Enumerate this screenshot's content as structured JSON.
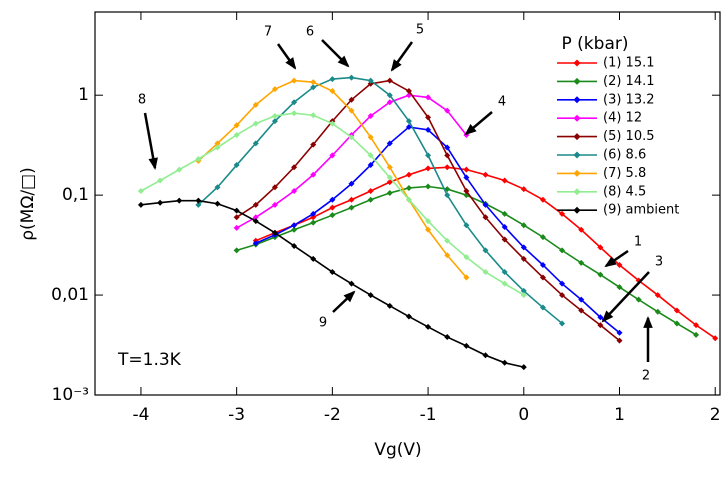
{
  "chart_data": {
    "type": "line",
    "y_label": "ρ(MΩ/□)",
    "x_label": "Vg(V)",
    "log_y": true,
    "xlim": [
      -4.48,
      2.05
    ],
    "ylim": [
      0.001,
      6.8
    ],
    "xticks": [
      -4,
      -3,
      -2,
      -1,
      0,
      1,
      2
    ],
    "yticks": [
      {
        "value": 0.001,
        "label": "10⁻³"
      },
      {
        "value": 0.01,
        "label": "0,01"
      },
      {
        "value": 0.1,
        "label": "0,1"
      },
      1
    ],
    "legend_title": "P (kbar)",
    "legend": "upper right",
    "annotation": "T=1.3K",
    "arrow_labels": [
      "1",
      "2",
      "3",
      "4",
      "5",
      "6",
      "7",
      "8",
      "9"
    ],
    "x": [
      -4.0,
      -3.8,
      -3.6,
      -3.4,
      -3.2,
      -3.0,
      -2.8,
      -2.6,
      -2.4,
      -2.2,
      -2.0,
      -1.8,
      -1.6,
      -1.4,
      -1.2,
      -1.0,
      -0.8,
      -0.6,
      -0.4,
      -0.2,
      0.0,
      0.2,
      0.4,
      0.6,
      0.8,
      1.0,
      1.2,
      1.4,
      1.6,
      1.8,
      2.0
    ],
    "series": [
      {
        "name": "(1) 15.1",
        "color": "#ff0000",
        "values": [
          null,
          null,
          null,
          null,
          null,
          null,
          0.035,
          0.042,
          0.05,
          0.06,
          0.075,
          0.09,
          0.11,
          0.135,
          0.16,
          0.185,
          0.19,
          0.18,
          0.16,
          0.14,
          0.115,
          0.09,
          0.065,
          0.045,
          0.03,
          0.02,
          0.014,
          0.01,
          0.007,
          0.005,
          0.0037
        ]
      },
      {
        "name": "(2) 14.1",
        "color": "#1a8a1a",
        "values": [
          null,
          null,
          null,
          null,
          null,
          0.028,
          0.032,
          0.038,
          0.045,
          0.053,
          0.063,
          0.075,
          0.09,
          0.105,
          0.118,
          0.122,
          0.115,
          0.1,
          0.082,
          0.065,
          0.05,
          0.038,
          0.028,
          0.021,
          0.016,
          0.012,
          0.009,
          0.0068,
          0.0052,
          0.004,
          null
        ]
      },
      {
        "name": "(3) 13.2",
        "color": "#0000ff",
        "values": [
          null,
          null,
          null,
          null,
          null,
          null,
          0.033,
          0.04,
          0.05,
          0.065,
          0.09,
          0.13,
          0.2,
          0.33,
          0.48,
          0.45,
          0.3,
          0.15,
          0.08,
          0.048,
          0.03,
          0.02,
          0.013,
          0.009,
          0.006,
          0.0042,
          null,
          null,
          null,
          null,
          null
        ]
      },
      {
        "name": "(4) 12",
        "color": "#ff00ff",
        "values": [
          null,
          null,
          null,
          null,
          null,
          0.047,
          0.06,
          0.08,
          0.11,
          0.16,
          0.25,
          0.4,
          0.62,
          0.85,
          1.0,
          0.95,
          0.7,
          0.4,
          null,
          null,
          null,
          null,
          null,
          null,
          null,
          null,
          null,
          null,
          null,
          null,
          null
        ]
      },
      {
        "name": "(5) 10.5",
        "color": "#8b0000",
        "values": [
          null,
          null,
          null,
          null,
          null,
          0.06,
          0.08,
          0.12,
          0.19,
          0.32,
          0.55,
          0.9,
          1.3,
          1.4,
          1.1,
          0.6,
          0.25,
          0.11,
          0.06,
          0.036,
          0.023,
          0.015,
          0.01,
          0.007,
          0.005,
          0.0035,
          null,
          null,
          null,
          null,
          null
        ]
      },
      {
        "name": "(6) 8.6",
        "color": "#1a8a8a",
        "values": [
          null,
          null,
          null,
          0.08,
          0.12,
          0.2,
          0.33,
          0.55,
          0.85,
          1.2,
          1.45,
          1.5,
          1.4,
          1.0,
          0.55,
          0.25,
          0.1,
          0.05,
          0.028,
          0.017,
          0.011,
          0.0075,
          0.0052,
          null,
          null,
          null,
          null,
          null,
          null,
          null,
          null
        ]
      },
      {
        "name": "(7) 5.8",
        "color": "#ffa500",
        "values": [
          null,
          null,
          null,
          0.22,
          0.33,
          0.5,
          0.8,
          1.15,
          1.4,
          1.35,
          1.1,
          0.7,
          0.38,
          0.19,
          0.09,
          0.045,
          0.025,
          0.015,
          null,
          null,
          null,
          null,
          null,
          null,
          null,
          null,
          null,
          null,
          null,
          null,
          null
        ]
      },
      {
        "name": "(8) 4.5",
        "color": "#90ee90",
        "values": [
          0.11,
          0.14,
          0.18,
          0.23,
          0.3,
          0.4,
          0.52,
          0.62,
          0.66,
          0.63,
          0.52,
          0.38,
          0.25,
          0.15,
          0.09,
          0.055,
          0.035,
          0.024,
          0.017,
          0.013,
          0.01,
          null,
          null,
          null,
          null,
          null,
          null,
          null,
          null,
          null,
          null
        ]
      },
      {
        "name": "(9) ambient",
        "color": "#000000",
        "values": [
          0.08,
          0.084,
          0.088,
          0.088,
          0.082,
          0.07,
          0.055,
          0.042,
          0.031,
          0.023,
          0.017,
          0.013,
          0.01,
          0.0078,
          0.0061,
          0.0048,
          0.0038,
          0.0031,
          0.0025,
          0.0021,
          0.0019,
          null,
          null,
          null,
          null,
          null,
          null,
          null,
          null,
          null,
          null
        ]
      }
    ]
  }
}
